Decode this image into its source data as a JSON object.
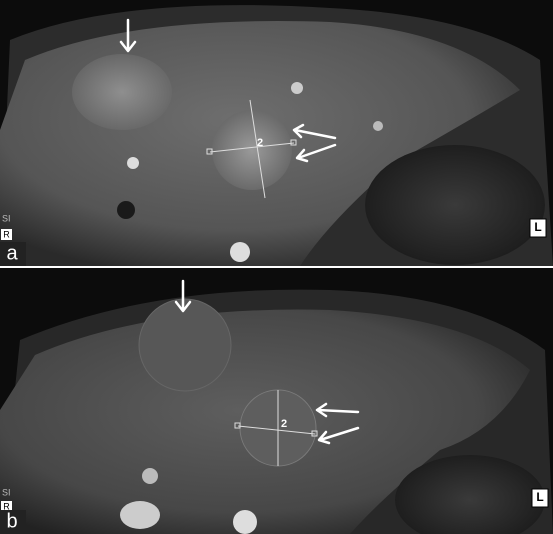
{
  "panels": [
    {
      "label": "a",
      "marker": "2",
      "side_labels": [
        "SI",
        "R",
        "L"
      ]
    },
    {
      "label": "b",
      "marker": "2",
      "side_labels": [
        "SI",
        "R",
        "L"
      ]
    }
  ]
}
